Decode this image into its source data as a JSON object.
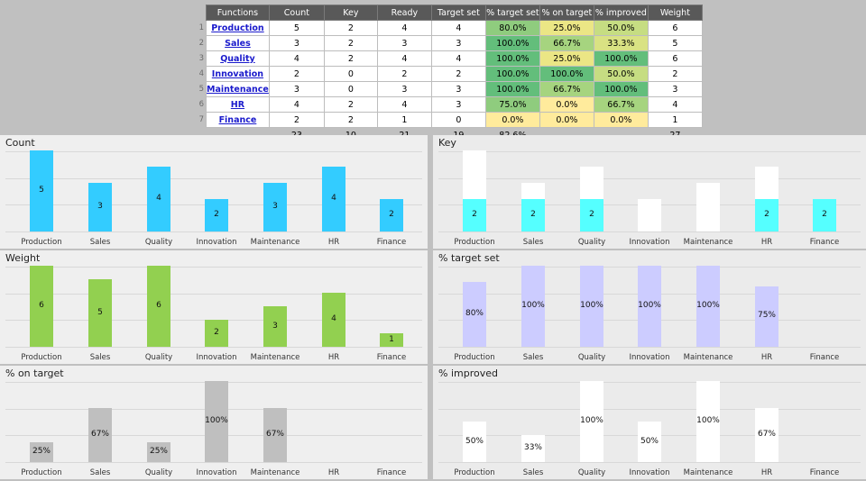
{
  "table": {
    "headers": [
      "Functions",
      "Count",
      "Key",
      "Ready",
      "Target set",
      "% target set",
      "% on target",
      "% improved",
      "Weight"
    ],
    "rows": [
      {
        "n": "1",
        "name": "Production",
        "count": "5",
        "key": "2",
        "ready": "4",
        "target": "4",
        "pts": "80.0%",
        "pot": "25.0%",
        "pim": "50.0%",
        "weight": "6"
      },
      {
        "n": "2",
        "name": "Sales",
        "count": "3",
        "key": "2",
        "ready": "3",
        "target": "3",
        "pts": "100.0%",
        "pot": "66.7%",
        "pim": "33.3%",
        "weight": "5"
      },
      {
        "n": "3",
        "name": "Quality",
        "count": "4",
        "key": "2",
        "ready": "4",
        "target": "4",
        "pts": "100.0%",
        "pot": "25.0%",
        "pim": "100.0%",
        "weight": "6"
      },
      {
        "n": "4",
        "name": "Innovation",
        "count": "2",
        "key": "0",
        "ready": "2",
        "target": "2",
        "pts": "100.0%",
        "pot": "100.0%",
        "pim": "50.0%",
        "weight": "2"
      },
      {
        "n": "5",
        "name": "Maintenance",
        "count": "3",
        "key": "0",
        "ready": "3",
        "target": "3",
        "pts": "100.0%",
        "pot": "66.7%",
        "pim": "100.0%",
        "weight": "3"
      },
      {
        "n": "6",
        "name": "HR",
        "count": "4",
        "key": "2",
        "ready": "4",
        "target": "3",
        "pts": "75.0%",
        "pot": "0.0%",
        "pim": "66.7%",
        "weight": "4"
      },
      {
        "n": "7",
        "name": "Finance",
        "count": "2",
        "key": "2",
        "ready": "1",
        "target": "0",
        "pts": "0.0%",
        "pot": "0.0%",
        "pim": "0.0%",
        "weight": "1"
      }
    ],
    "totals": {
      "count": "23",
      "key": "10",
      "ready": "21",
      "target": "19",
      "pts": "82.6%",
      "weight": "27"
    }
  },
  "colors": {
    "count": "#33ccff",
    "key": "#55ffff",
    "weight": "#92d050",
    "target_set": "#ccccff",
    "on_target": "#bfbfbf",
    "improved": "#ffffff"
  },
  "chart_data": [
    {
      "type": "bar",
      "title": "Count",
      "categories": [
        "Production",
        "Sales",
        "Quality",
        "Innovation",
        "Maintenance",
        "HR",
        "Finance"
      ],
      "values": [
        5,
        3,
        4,
        2,
        3,
        4,
        2
      ],
      "labels": [
        "5",
        "3",
        "4",
        "2",
        "3",
        "4",
        "2"
      ],
      "ylim": [
        0,
        5
      ]
    },
    {
      "type": "bar",
      "title": "Key",
      "categories": [
        "Production",
        "Sales",
        "Quality",
        "Innovation",
        "Maintenance",
        "HR",
        "Finance"
      ],
      "series": [
        {
          "values": [
            2,
            2,
            2,
            0,
            0,
            2,
            2
          ]
        },
        {
          "values": [
            3,
            1,
            2,
            2,
            3,
            2,
            0
          ]
        }
      ],
      "labels": [
        "2",
        "2",
        "2",
        "",
        "",
        "2",
        "2"
      ],
      "ylim": [
        0,
        5
      ]
    },
    {
      "type": "bar",
      "title": "Weight",
      "categories": [
        "Production",
        "Sales",
        "Quality",
        "Innovation",
        "Maintenance",
        "HR",
        "Finance"
      ],
      "values": [
        6,
        5,
        6,
        2,
        3,
        4,
        1
      ],
      "labels": [
        "6",
        "5",
        "6",
        "2",
        "3",
        "4",
        "1"
      ],
      "ylim": [
        0,
        6
      ]
    },
    {
      "type": "bar",
      "title": "% target set",
      "categories": [
        "Production",
        "Sales",
        "Quality",
        "Innovation",
        "Maintenance",
        "HR",
        "Finance"
      ],
      "values": [
        80,
        100,
        100,
        100,
        100,
        75,
        0
      ],
      "labels": [
        "80%",
        "100%",
        "100%",
        "100%",
        "100%",
        "75%",
        ""
      ],
      "ylim": [
        0,
        100
      ]
    },
    {
      "type": "bar",
      "title": "% on target",
      "categories": [
        "Production",
        "Sales",
        "Quality",
        "Innovation",
        "Maintenance",
        "HR",
        "Finance"
      ],
      "values": [
        25,
        67,
        25,
        100,
        67,
        0,
        0
      ],
      "labels": [
        "25%",
        "67%",
        "25%",
        "100%",
        "67%",
        "",
        ""
      ],
      "ylim": [
        0,
        100
      ]
    },
    {
      "type": "bar",
      "title": "% improved",
      "categories": [
        "Production",
        "Sales",
        "Quality",
        "Innovation",
        "Maintenance",
        "HR",
        "Finance"
      ],
      "values": [
        50,
        33,
        100,
        50,
        100,
        67,
        0
      ],
      "labels": [
        "50%",
        "33%",
        "100%",
        "50%",
        "100%",
        "67%",
        ""
      ],
      "ylim": [
        0,
        100
      ]
    }
  ]
}
